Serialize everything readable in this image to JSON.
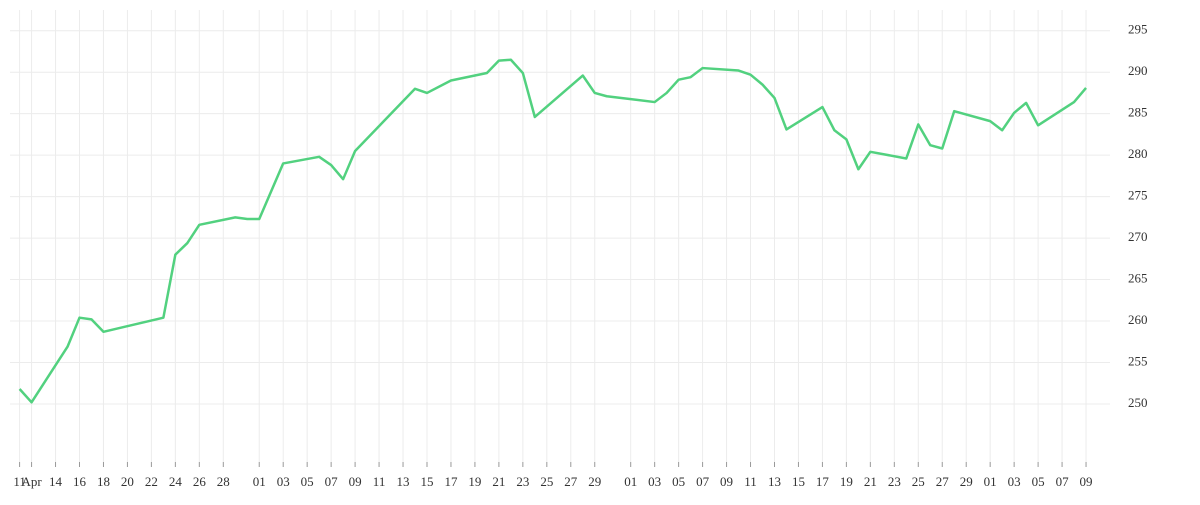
{
  "chart_data": {
    "type": "line",
    "x": [
      0,
      1,
      4,
      5,
      6,
      7,
      12,
      13,
      14,
      15,
      18,
      19,
      20,
      22,
      25,
      26,
      27,
      28,
      33,
      34,
      36,
      39,
      40,
      41,
      42,
      43,
      47,
      48,
      49,
      53,
      54,
      55,
      56,
      57,
      60,
      61,
      62,
      63,
      64,
      67,
      68,
      69,
      70,
      71,
      74,
      75,
      76,
      77,
      78,
      81,
      82,
      83,
      84,
      85,
      88,
      89
    ],
    "series": [
      {
        "color": "#52d17f",
        "values": [
          251.8,
          250.2,
          256.9,
          260.4,
          260.2,
          258.7,
          260.4,
          268.0,
          269.4,
          271.6,
          272.5,
          272.3,
          272.3,
          279.0,
          279.8,
          278.8,
          277.1,
          280.5,
          288.0,
          287.5,
          289.0,
          289.9,
          291.4,
          291.5,
          289.9,
          284.6,
          289.6,
          287.5,
          287.1,
          286.4,
          287.5,
          289.1,
          289.4,
          290.5,
          290.2,
          289.7,
          288.5,
          286.9,
          283.1,
          285.8,
          283.0,
          281.9,
          278.3,
          280.4,
          279.6,
          283.7,
          281.2,
          280.8,
          285.3,
          284.1,
          283.0,
          285.1,
          286.3,
          283.6,
          286.4,
          288.1
        ]
      }
    ],
    "xlim": [
      -0.8,
      91
    ],
    "xticks": [
      {
        "value": 0,
        "label": "11"
      },
      {
        "value": 1,
        "label": "Apr"
      },
      {
        "value": 3,
        "label": "14"
      },
      {
        "value": 5,
        "label": "16"
      },
      {
        "value": 7,
        "label": "18"
      },
      {
        "value": 9,
        "label": "20"
      },
      {
        "value": 11,
        "label": "22"
      },
      {
        "value": 13,
        "label": "24"
      },
      {
        "value": 15,
        "label": "26"
      },
      {
        "value": 17,
        "label": "28"
      },
      {
        "value": 20,
        "label": "01"
      },
      {
        "value": 22,
        "label": "03"
      },
      {
        "value": 24,
        "label": "05"
      },
      {
        "value": 26,
        "label": "07"
      },
      {
        "value": 28,
        "label": "09"
      },
      {
        "value": 30,
        "label": "11"
      },
      {
        "value": 32,
        "label": "13"
      },
      {
        "value": 34,
        "label": "15"
      },
      {
        "value": 36,
        "label": "17"
      },
      {
        "value": 38,
        "label": "19"
      },
      {
        "value": 40,
        "label": "21"
      },
      {
        "value": 42,
        "label": "23"
      },
      {
        "value": 44,
        "label": "25"
      },
      {
        "value": 46,
        "label": "27"
      },
      {
        "value": 48,
        "label": "29"
      },
      {
        "value": 51,
        "label": "01"
      },
      {
        "value": 53,
        "label": "03"
      },
      {
        "value": 55,
        "label": "05"
      },
      {
        "value": 57,
        "label": "07"
      },
      {
        "value": 59,
        "label": "09"
      },
      {
        "value": 61,
        "label": "11"
      },
      {
        "value": 63,
        "label": "13"
      },
      {
        "value": 65,
        "label": "15"
      },
      {
        "value": 67,
        "label": "17"
      },
      {
        "value": 69,
        "label": "19"
      },
      {
        "value": 71,
        "label": "21"
      },
      {
        "value": 73,
        "label": "23"
      },
      {
        "value": 75,
        "label": "25"
      },
      {
        "value": 77,
        "label": "27"
      },
      {
        "value": 79,
        "label": "29"
      },
      {
        "value": 81,
        "label": "01"
      },
      {
        "value": 83,
        "label": "03"
      },
      {
        "value": 85,
        "label": "05"
      },
      {
        "value": 87,
        "label": "07"
      },
      {
        "value": 89,
        "label": "09"
      }
    ],
    "ylim": [
      243,
      297.5
    ],
    "yticks": [
      250,
      255,
      260,
      265,
      270,
      275,
      280,
      285,
      290,
      295
    ],
    "grid": true
  }
}
